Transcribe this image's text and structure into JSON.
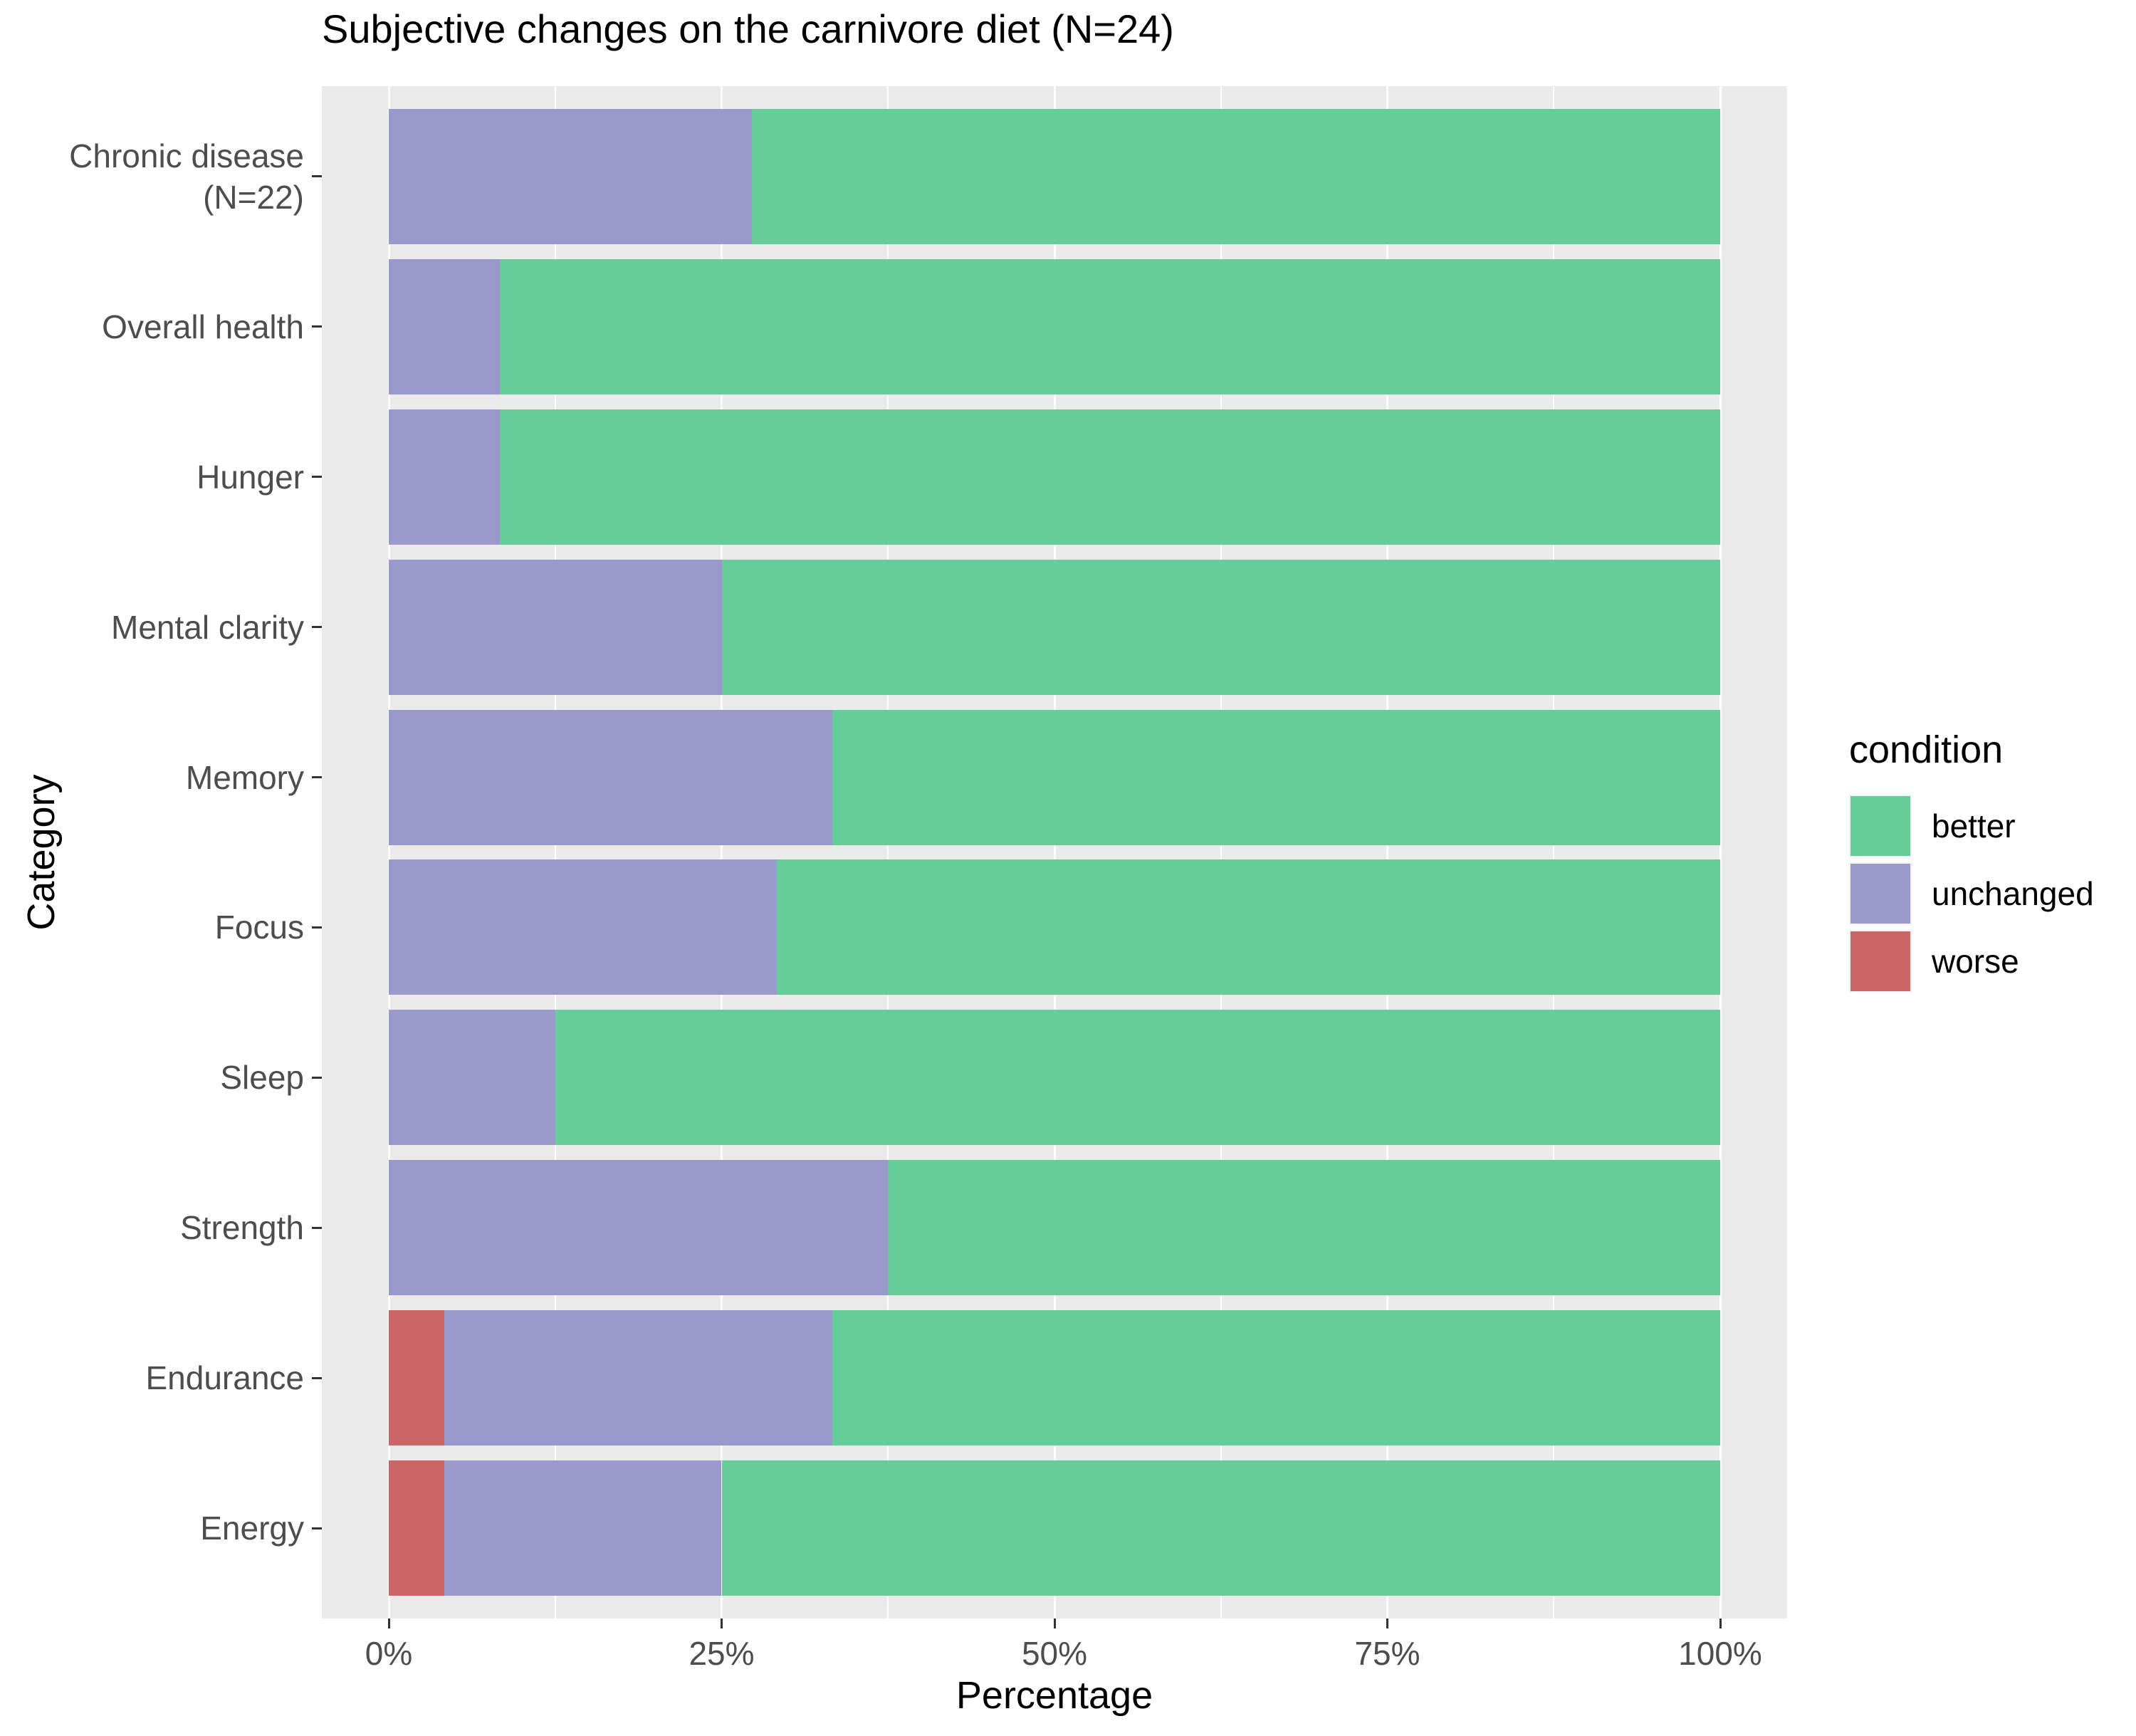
{
  "title": "Subjective changes on the carnivore diet (N=24)",
  "axes": {
    "x_title": "Percentage",
    "y_title": "Category",
    "x_tick_labels": [
      "0%",
      "25%",
      "50%",
      "75%",
      "100%"
    ]
  },
  "legend": {
    "title": "condition",
    "items": [
      {
        "label": "better",
        "color": "#66CC99"
      },
      {
        "label": "unchanged",
        "color": "#9999CC"
      },
      {
        "label": "worse",
        "color": "#CC6666"
      }
    ]
  },
  "colors": {
    "panel_background": "#EBEBEB",
    "gridline": "#ffffff",
    "tick_mark": "#333333",
    "tick_label": "#4d4d4d",
    "better": "#66CC99",
    "unchanged": "#9999CC",
    "worse": "#CC6666"
  },
  "chart_data": {
    "type": "bar",
    "orientation": "horizontal",
    "stacked": true,
    "units": "percent",
    "title": "Subjective changes on the carnivore diet (N=24)",
    "xlabel": "Percentage",
    "ylabel": "Category",
    "xlim": [
      0,
      100
    ],
    "x_major_ticks": [
      0,
      25,
      50,
      75,
      100
    ],
    "x_minor_ticks": [
      12.5,
      37.5,
      62.5,
      87.5
    ],
    "grid": true,
    "legend_position": "right",
    "categories": [
      "Chronic disease\n(N=22)",
      "Overall health",
      "Hunger",
      "Mental clarity",
      "Memory",
      "Focus",
      "Sleep",
      "Strength",
      "Endurance",
      "Energy"
    ],
    "series": [
      {
        "name": "worse",
        "color": "#CC6666",
        "values": [
          0,
          0,
          0,
          0,
          0,
          0,
          0,
          0,
          4.17,
          4.17
        ]
      },
      {
        "name": "unchanged",
        "color": "#9999CC",
        "values": [
          27.27,
          8.33,
          8.33,
          25,
          33.33,
          29.17,
          12.5,
          37.5,
          29.17,
          20.83
        ]
      },
      {
        "name": "better",
        "color": "#66CC99",
        "values": [
          72.73,
          91.67,
          91.67,
          75,
          66.67,
          70.83,
          87.5,
          62.5,
          66.67,
          75
        ]
      }
    ]
  }
}
